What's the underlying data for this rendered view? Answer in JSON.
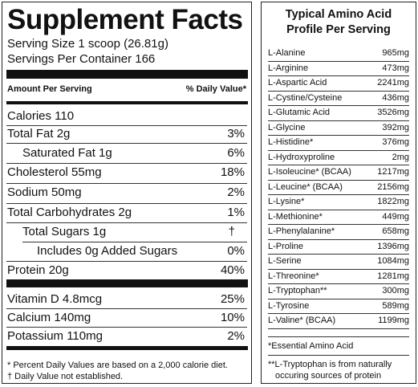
{
  "supplement_facts": {
    "title": "Supplement Facts",
    "serving_size": "Serving Size 1 scoop (26.81g)",
    "servings_per_container": "Servings Per Container 166",
    "header_left": "Amount Per Serving",
    "header_right": "% Daily Value*",
    "rows": [
      {
        "label": "Calories 110",
        "dv": ""
      },
      {
        "label": "Total Fat 2g",
        "dv": "3%"
      },
      {
        "label": "Saturated Fat 1g",
        "dv": "6%"
      },
      {
        "label": "Cholesterol 55mg",
        "dv": "18%"
      },
      {
        "label": "Sodium 50mg",
        "dv": "2%"
      },
      {
        "label": "Total Carbohydrates 2g",
        "dv": "1%"
      },
      {
        "label": "Total Sugars 1g",
        "dv": "†"
      },
      {
        "label": "Includes 0g Added Sugars",
        "dv": "0%"
      },
      {
        "label": "Protein 20g",
        "dv": "40%"
      },
      {
        "label": "Vitamin D 4.8mcg",
        "dv": "25%"
      },
      {
        "label": "Calcium 140mg",
        "dv": "10%"
      },
      {
        "label": "Potassium 110mg",
        "dv": "2%"
      }
    ],
    "footnote_1": "* Percent Daily Values are based on a 2,000 calorie diet.",
    "footnote_2": "† Daily Value not established."
  },
  "amino_profile": {
    "title_line1": "Typical Amino Acid",
    "title_line2": "Profile Per Serving",
    "rows": [
      {
        "name": "L-Alanine",
        "amount": "965mg"
      },
      {
        "name": "L-Arginine",
        "amount": "473mg"
      },
      {
        "name": "L-Aspartic Acid",
        "amount": "2241mg"
      },
      {
        "name": "L-Cystine/Cysteine",
        "amount": "436mg"
      },
      {
        "name": "L-Glutamic Acid",
        "amount": "3526mg"
      },
      {
        "name": "L-Glycine",
        "amount": "392mg"
      },
      {
        "name": "L-Histidine*",
        "amount": "376mg"
      },
      {
        "name": "L-Hydroxyproline",
        "amount": "2mg"
      },
      {
        "name": "L-Isoleucine* (BCAA)",
        "amount": "1217mg"
      },
      {
        "name": "L-Leucine* (BCAA)",
        "amount": "2156mg"
      },
      {
        "name": "L-Lysine*",
        "amount": "1822mg"
      },
      {
        "name": "L-Methionine*",
        "amount": "449mg"
      },
      {
        "name": "L-Phenylalanine*",
        "amount": "658mg"
      },
      {
        "name": "L-Proline",
        "amount": "1396mg"
      },
      {
        "name": "L-Serine",
        "amount": "1084mg"
      },
      {
        "name": "L-Threonine*",
        "amount": "1281mg"
      },
      {
        "name": "L-Tryptophan**",
        "amount": "300mg"
      },
      {
        "name": "L-Tyrosine",
        "amount": "589mg"
      },
      {
        "name": "L-Valine* (BCAA)",
        "amount": "1199mg"
      }
    ],
    "note_essential": "*Essential Amino Acid",
    "note_tryptophan_1": "**L-Tryptophan is from naturally",
    "note_tryptophan_2": "occuring sources of protein"
  }
}
